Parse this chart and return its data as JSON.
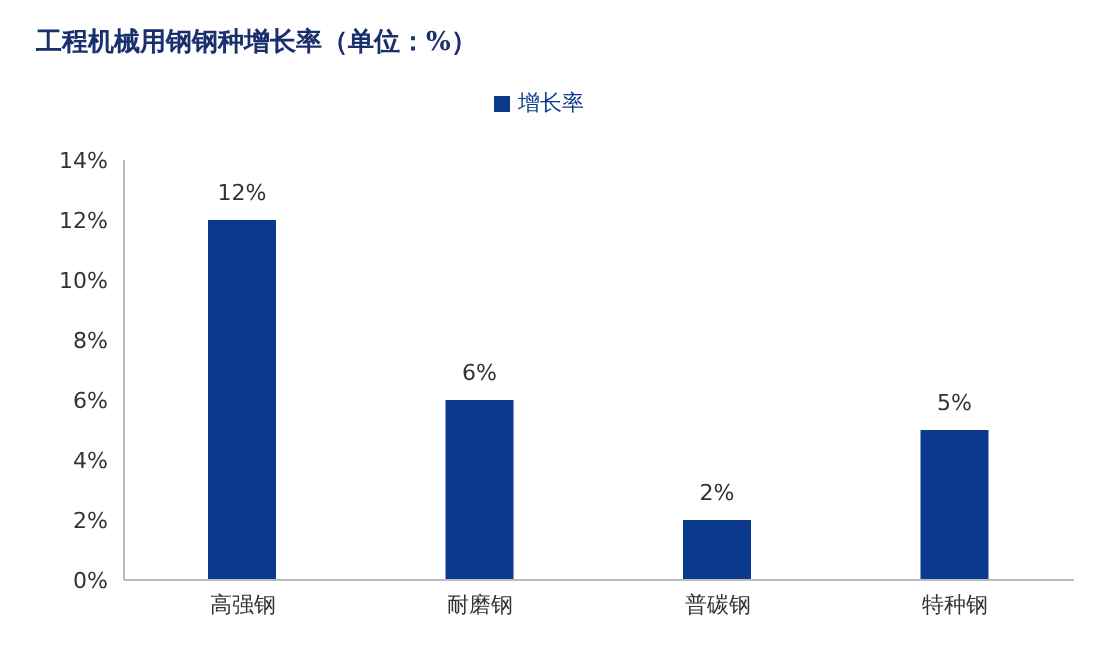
{
  "chart_data": {
    "type": "bar",
    "title": "工程机械用钢钢种增长率（单位：%）",
    "categories": [
      "高强钢",
      "耐磨钢",
      "普碳钢",
      "特种钢"
    ],
    "series": [
      {
        "name": "增长率",
        "color": "#0b3a8c",
        "values": [
          12,
          6,
          2,
          5
        ],
        "value_labels": [
          "12%",
          "6%",
          "2%",
          "5%"
        ]
      }
    ],
    "ylim": [
      0,
      14
    ],
    "yticks": [
      {
        "value": 0,
        "label": "0%"
      },
      {
        "value": 2,
        "label": "2%"
      },
      {
        "value": 4,
        "label": "4%"
      },
      {
        "value": 6,
        "label": "6%"
      },
      {
        "value": 8,
        "label": "8%"
      },
      {
        "value": 10,
        "label": "10%"
      },
      {
        "value": 12,
        "label": "12%"
      },
      {
        "value": 14,
        "label": "14%"
      }
    ],
    "grid": false,
    "legend": "top"
  }
}
